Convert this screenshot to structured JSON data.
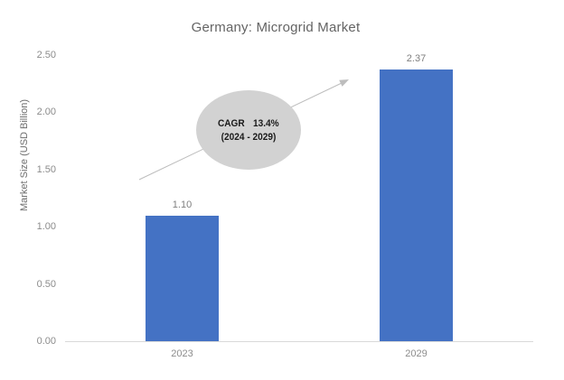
{
  "chart": {
    "title": "Germany: Microgrid Market",
    "y_axis": {
      "label": "Market Size (USD Billion)"
    },
    "annotation": {
      "cagr_label": "CAGR",
      "cagr_value": "13.4%",
      "period": "(2024 - 2029)"
    },
    "colors": {
      "bar": "#4472c4",
      "ellipse_fill": "#d2d2d2",
      "arrow": "#bdbdbd",
      "axis_line": "#d9d9d9",
      "title_text": "#646464",
      "tick_text": "#8c8c8c",
      "data_label_text": "#7f7f7f",
      "annotation_text": "#1a1a1a"
    }
  },
  "chart_data": {
    "type": "bar",
    "title": "Germany: Microgrid Market",
    "categories": [
      "2023",
      "2029"
    ],
    "values": [
      1.1,
      2.37
    ],
    "data_labels": [
      "1.10",
      "2.37"
    ],
    "xlabel": "",
    "ylabel": "Market Size (USD Billion)",
    "ylim": [
      0,
      2.5
    ],
    "ytick_step": 0.5,
    "ytick_labels": [
      "0.00",
      "0.50",
      "1.00",
      "1.50",
      "2.00",
      "2.50"
    ],
    "grid": false,
    "legend": false,
    "annotation": "CAGR 13.4% (2024 - 2029)",
    "bar_color": "#4472c4"
  }
}
